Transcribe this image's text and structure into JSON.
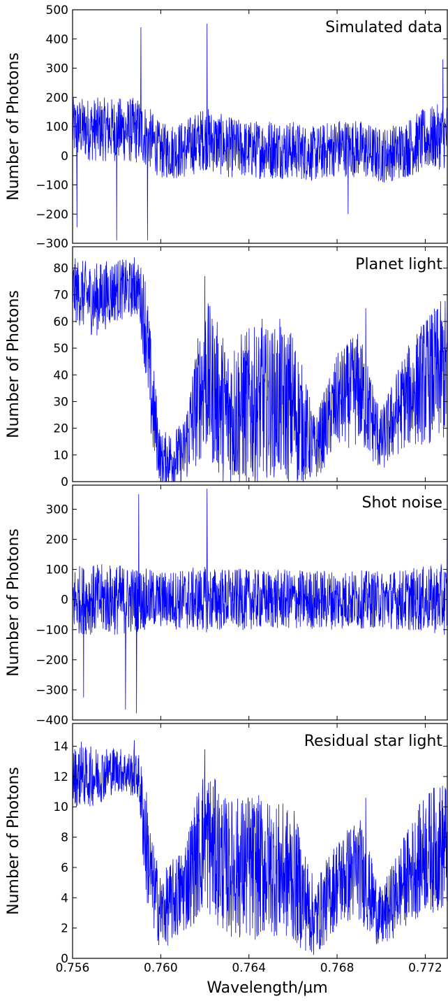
{
  "figure": {
    "xlabel": "Wavelength/µm",
    "line_color": "#0000ff"
  },
  "chart_data": [
    {
      "type": "line",
      "title": "Simulated data",
      "ylabel": "Number of Photons",
      "xlim": [
        0.756,
        0.773
      ],
      "ylim": [
        -300,
        500
      ],
      "x_ticks": [
        0.756,
        0.76,
        0.764,
        0.768,
        0.772
      ],
      "y_ticks": [
        -300,
        -200,
        -100,
        0,
        100,
        200,
        300,
        400,
        500
      ],
      "y_tick_labels": [
        "−300",
        "−200",
        "−100",
        "0",
        "100",
        "200",
        "300",
        "400",
        "500"
      ],
      "show_x_tick_labels": false,
      "series": [
        {
          "x": [
            0.756,
            0.757,
            0.758,
            0.759,
            0.7595,
            0.76,
            0.761,
            0.762,
            0.763,
            0.764,
            0.765,
            0.766,
            0.767,
            0.768,
            0.769,
            0.77,
            0.771,
            0.772,
            0.773
          ],
          "center": [
            95,
            90,
            90,
            85,
            60,
            15,
            20,
            60,
            30,
            20,
            25,
            20,
            5,
            30,
            25,
            0,
            20,
            55,
            70
          ],
          "spread": [
            105,
            110,
            110,
            115,
            105,
            95,
            100,
            110,
            105,
            100,
            105,
            100,
            95,
            100,
            100,
            95,
            100,
            110,
            115
          ],
          "peaks": [
            [
              0.7591,
              440
            ],
            [
              0.7621,
              452
            ],
            [
              0.758,
              -290
            ],
            [
              0.7594,
              -290
            ],
            [
              0.7728,
              330
            ],
            [
              0.7562,
              -245
            ],
            [
              0.7685,
              -200
            ]
          ]
        }
      ]
    },
    {
      "type": "line",
      "title": "Planet light",
      "ylabel": "Number of Photons",
      "xlim": [
        0.756,
        0.773
      ],
      "ylim": [
        0,
        88
      ],
      "x_ticks": [
        0.756,
        0.76,
        0.764,
        0.768,
        0.772
      ],
      "y_ticks": [
        0,
        10,
        20,
        30,
        40,
        50,
        60,
        70,
        80
      ],
      "y_tick_labels": [
        "0",
        "10",
        "20",
        "30",
        "40",
        "50",
        "60",
        "70",
        "80"
      ],
      "show_x_tick_labels": false,
      "series": [
        {
          "x": [
            0.756,
            0.757,
            0.758,
            0.759,
            0.7593,
            0.7596,
            0.76,
            0.761,
            0.762,
            0.763,
            0.764,
            0.765,
            0.766,
            0.767,
            0.768,
            0.769,
            0.77,
            0.771,
            0.772,
            0.773
          ],
          "center": [
            72,
            68,
            72,
            72,
            60,
            30,
            8,
            10,
            40,
            25,
            28,
            30,
            28,
            12,
            30,
            35,
            15,
            30,
            38,
            42
          ],
          "spread": [
            12,
            14,
            12,
            10,
            20,
            20,
            10,
            12,
            30,
            28,
            30,
            28,
            30,
            12,
            18,
            22,
            12,
            18,
            24,
            28
          ],
          "peaks": [
            [
              0.762,
              77
            ],
            [
              0.7588,
              84
            ],
            [
              0.7646,
              61
            ],
            [
              0.7654,
              61
            ],
            [
              0.7693,
              65
            ],
            [
              0.773,
              70
            ]
          ]
        }
      ]
    },
    {
      "type": "line",
      "title": "Shot noise",
      "ylabel": "Number of Photons",
      "xlim": [
        0.756,
        0.773
      ],
      "ylim": [
        -400,
        380
      ],
      "x_ticks": [
        0.756,
        0.76,
        0.764,
        0.768,
        0.772
      ],
      "y_ticks": [
        -400,
        -300,
        -200,
        -100,
        0,
        100,
        200,
        300
      ],
      "y_tick_labels": [
        "−400",
        "−300",
        "−200",
        "−100",
        "0",
        "100",
        "200",
        "300"
      ],
      "show_x_tick_labels": false,
      "series": [
        {
          "x": [
            0.756,
            0.758,
            0.76,
            0.762,
            0.764,
            0.766,
            0.768,
            0.77,
            0.772,
            0.773
          ],
          "center": [
            0,
            0,
            0,
            0,
            0,
            0,
            0,
            0,
            0,
            0
          ],
          "spread": [
            115,
            120,
            95,
            110,
            100,
            100,
            100,
            95,
            110,
            120
          ],
          "peaks": [
            [
              0.759,
              350
            ],
            [
              0.7621,
              368
            ],
            [
              0.7589,
              -378
            ],
            [
              0.7584,
              -365
            ],
            [
              0.7565,
              -325
            ],
            [
              0.773,
              290
            ]
          ]
        }
      ]
    },
    {
      "type": "line",
      "title": "Residual star light",
      "ylabel": "Number of Photons",
      "xlim": [
        0.756,
        0.773
      ],
      "ylim": [
        0,
        15.5
      ],
      "x_ticks": [
        0.756,
        0.76,
        0.764,
        0.768,
        0.772
      ],
      "x_tick_labels": [
        "0.756",
        "0.760",
        "0.764",
        "0.768",
        "0.772"
      ],
      "y_ticks": [
        0,
        2,
        4,
        6,
        8,
        10,
        12,
        14
      ],
      "y_tick_labels": [
        "0",
        "2",
        "4",
        "6",
        "8",
        "10",
        "12",
        "14"
      ],
      "show_x_tick_labels": true,
      "series": [
        {
          "x": [
            0.756,
            0.757,
            0.758,
            0.759,
            0.7593,
            0.7596,
            0.76,
            0.761,
            0.762,
            0.763,
            0.764,
            0.765,
            0.766,
            0.767,
            0.768,
            0.769,
            0.77,
            0.771,
            0.772,
            0.773
          ],
          "center": [
            12,
            12,
            12.5,
            12,
            8,
            5,
            3,
            4.5,
            8,
            6,
            6,
            6,
            5.5,
            2.5,
            5,
            6,
            2.5,
            5,
            7,
            7.5
          ],
          "spread": [
            2,
            2,
            1.5,
            1.5,
            4,
            3,
            2.5,
            3,
            5,
            4.5,
            5,
            4.5,
            4.5,
            2.5,
            3,
            3.5,
            2,
            3,
            4,
            4.5
          ],
          "peaks": [
            [
              0.762,
              13.8
            ],
            [
              0.7588,
              14.4
            ],
            [
              0.7564,
              14.3
            ],
            [
              0.7693,
              10.6
            ],
            [
              0.773,
              12
            ]
          ]
        }
      ]
    }
  ]
}
